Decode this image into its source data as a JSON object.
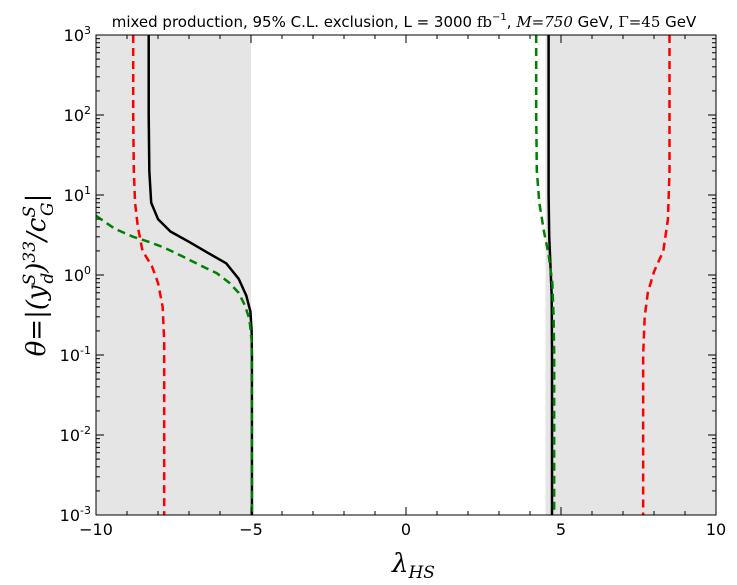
{
  "chart_data": {
    "type": "line",
    "title": "mixed production, 95% C.L. exclusion, L = 3000 fb⁻¹, M = 750 GeV, Γ = 45 GeV",
    "title_parts": {
      "main": "mixed production, 95% C.L. exclusion, L = 3000 ",
      "lumi_unit": "fb",
      "lumi_exp": "−1",
      "sep": ", ",
      "mass": "M=750",
      "mass_unit": " GeV, ",
      "width": "Γ=45",
      "width_unit": " GeV"
    },
    "xlabel": "λ",
    "xlabel_sub": "HS",
    "ylabel": "θ=|(y_d^S)^33 / c_G^S|",
    "ylabel_parts": {
      "lhs": "θ=|(",
      "y": "y",
      "y_sup": "S",
      "y_sub": "d",
      "paren_close": ")",
      "exp": "33",
      "slash": "/",
      "c": "c",
      "c_sup": "S",
      "c_sub": "G",
      "bar": "|"
    },
    "xlim": [
      -10,
      10
    ],
    "ylim": [
      0.001,
      1000
    ],
    "yscale": "log",
    "xticks": [
      -10,
      -5,
      0,
      5,
      10
    ],
    "xtick_labels": [
      "−10",
      "−5",
      "0",
      "5",
      "10"
    ],
    "yticks": [
      {
        "base": "10",
        "exp": "-3"
      },
      {
        "base": "10",
        "exp": "-2"
      },
      {
        "base": "10",
        "exp": "-1"
      },
      {
        "base": "10",
        "exp": "0"
      },
      {
        "base": "10",
        "exp": "1"
      },
      {
        "base": "10",
        "exp": "2"
      },
      {
        "base": "10",
        "exp": "3"
      }
    ],
    "excluded_regions": [
      {
        "x": [
          -10,
          -5.0
        ],
        "color": "#e5e5e5"
      },
      {
        "x": [
          4.5,
          10
        ],
        "color": "#e5e5e5"
      }
    ],
    "series": [
      {
        "name": "black-left",
        "color": "#000000",
        "style": "solid",
        "points": [
          [
            -8.3,
            1000
          ],
          [
            -8.3,
            100
          ],
          [
            -8.28,
            20
          ],
          [
            -8.22,
            8
          ],
          [
            -8.0,
            5
          ],
          [
            -7.6,
            3.5
          ],
          [
            -7.0,
            2.6
          ],
          [
            -6.4,
            1.9
          ],
          [
            -5.8,
            1.4
          ],
          [
            -5.4,
            0.9
          ],
          [
            -5.15,
            0.55
          ],
          [
            -5.02,
            0.35
          ],
          [
            -4.98,
            0.2
          ],
          [
            -4.97,
            0.1
          ],
          [
            -4.97,
            0.001
          ]
        ]
      },
      {
        "name": "black-right",
        "color": "#000000",
        "style": "solid",
        "points": [
          [
            4.6,
            1000
          ],
          [
            4.6,
            10
          ],
          [
            4.62,
            3
          ],
          [
            4.66,
            1.3
          ],
          [
            4.7,
            0.55
          ],
          [
            4.71,
            0.1
          ],
          [
            4.71,
            0.001
          ]
        ]
      },
      {
        "name": "green-left",
        "color": "#008000",
        "style": "dashed",
        "points": [
          [
            -10,
            5.5
          ],
          [
            -9.4,
            3.8
          ],
          [
            -8.8,
            3.0
          ],
          [
            -8.3,
            2.6
          ],
          [
            -7.8,
            2.2
          ],
          [
            -7.2,
            1.7
          ],
          [
            -6.6,
            1.3
          ],
          [
            -6.1,
            1.05
          ],
          [
            -5.7,
            0.8
          ],
          [
            -5.4,
            0.6
          ],
          [
            -5.2,
            0.42
          ],
          [
            -5.05,
            0.28
          ],
          [
            -4.98,
            0.15
          ],
          [
            -4.97,
            0.001
          ]
        ]
      },
      {
        "name": "green-right",
        "color": "#008000",
        "style": "dashed",
        "points": [
          [
            4.2,
            1000
          ],
          [
            4.2,
            100
          ],
          [
            4.22,
            20
          ],
          [
            4.3,
            8
          ],
          [
            4.45,
            3.5
          ],
          [
            4.6,
            1.8
          ],
          [
            4.72,
            0.8
          ],
          [
            4.76,
            0.3
          ],
          [
            4.78,
            0.1
          ],
          [
            4.78,
            0.001
          ]
        ]
      },
      {
        "name": "red-left",
        "color": "#ff0000",
        "style": "dashed",
        "points": [
          [
            -8.8,
            1000
          ],
          [
            -8.8,
            100
          ],
          [
            -8.78,
            20
          ],
          [
            -8.74,
            8
          ],
          [
            -8.65,
            4
          ],
          [
            -8.5,
            2
          ],
          [
            -8.2,
            1.3
          ],
          [
            -8.0,
            0.8
          ],
          [
            -7.85,
            0.4
          ],
          [
            -7.8,
            0.15
          ],
          [
            -7.8,
            0.001
          ]
        ]
      },
      {
        "name": "red-right",
        "color": "#ff0000",
        "style": "dashed",
        "points": [
          [
            8.5,
            1000
          ],
          [
            8.5,
            100
          ],
          [
            8.5,
            20
          ],
          [
            8.45,
            5
          ],
          [
            8.3,
            2
          ],
          [
            8.0,
            1.1
          ],
          [
            7.8,
            0.6
          ],
          [
            7.7,
            0.3
          ],
          [
            7.65,
            0.1
          ],
          [
            7.65,
            0.001
          ]
        ]
      }
    ]
  }
}
